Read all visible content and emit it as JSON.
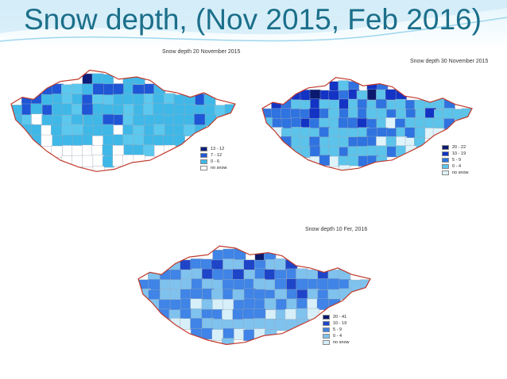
{
  "slide": {
    "title": "Snow depth, (Nov 2015, Feb 2016)"
  },
  "maps": [
    {
      "title": "Snow depth 20 November 2015",
      "legend": [
        {
          "label": "13 - 12",
          "color": "#0d1f7a"
        },
        {
          "label": "7 - 12",
          "color": "#1e56d6"
        },
        {
          "label": "0 - 6",
          "color": "#3fb8e8"
        },
        {
          "label": "no snow",
          "color": "#ffffff"
        }
      ]
    },
    {
      "title": "Snow depth 30 November 2015",
      "legend": [
        {
          "label": "20 - 22",
          "color": "#0b1a6e"
        },
        {
          "label": "10 - 19",
          "color": "#1333c4"
        },
        {
          "label": "5 - 9",
          "color": "#2f73e0"
        },
        {
          "label": "0 - 4",
          "color": "#5cc3ea"
        },
        {
          "label": "no snow",
          "color": "#dff3fb"
        }
      ]
    },
    {
      "title": "Snow depth 10 Fer, 2016",
      "legend": [
        {
          "label": "20 - 41",
          "color": "#0b1a6e"
        },
        {
          "label": "10 - 19",
          "color": "#1e45c8"
        },
        {
          "label": "5 - 9",
          "color": "#3f84e6"
        },
        {
          "label": "0 - 4",
          "color": "#7fc2ee"
        },
        {
          "label": "no snow",
          "color": "#d6eff9"
        }
      ]
    }
  ],
  "colors": {
    "title": "#1b6f8a",
    "border": "#c0392b"
  }
}
